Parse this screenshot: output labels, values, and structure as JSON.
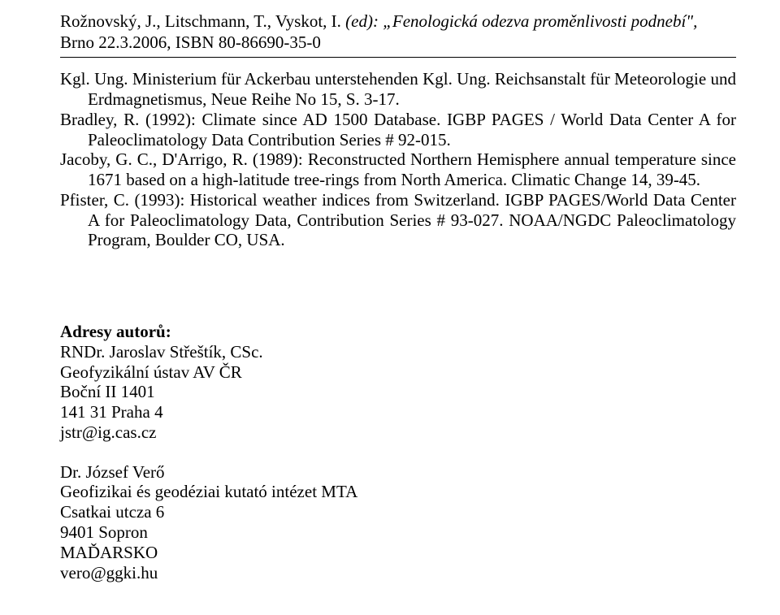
{
  "header": {
    "line1_before": "Rožnovský, J., Litschmann, T., Vyskot, I.  ",
    "line1_after": "(ed): „Fenologická odezva proměnlivosti podnebí\",",
    "line2": "Brno 22.3.2006, ISBN 80-86690-35-0"
  },
  "refs": {
    "r1": "Kgl. Ung. Ministerium für Ackerbau unterstehenden Kgl. Ung. Reichsanstalt für Meteorologie und Erdmagnetismus, Neue Reihe No 15, S. 3-17.",
    "r2": "Bradley, R. (1992): Climate since AD 1500 Database. IGBP PAGES / World Data Center A for Paleoclimatology Data Contribution Series # 92-015.",
    "r3": "Jacoby, G. C., D'Arrigo, R. (1989): Reconstructed Northern Hemisphere annual temperature since 1671 based on a high-latitude tree-rings from North America. Climatic Change 14, 39-45.",
    "r4": "Pfister, C. (1993): Historical weather indices from Switzerland. IGBP PAGES/World Data Center A for Paleoclimatology Data, Contribution Series # 93-027. NOAA/NGDC Paleoclimatology Program, Boulder CO, USA."
  },
  "authors": {
    "heading": "Adresy autorů:",
    "a1_line1": "RNDr. Jaroslav Střeštík, CSc.",
    "a1_line2": "Geofyzikální ústav AV ČR",
    "a1_line3": "Boční II 1401",
    "a1_line4": "141 31  Praha 4",
    "a1_line5": "jstr@ig.cas.cz",
    "a2_line1": "Dr. József Verő",
    "a2_line2": "Geofizikai és geodéziai kutató intézet MTA",
    "a2_line3": "Csatkai utcza 6",
    "a2_line4": "9401 Sopron",
    "a2_line5": "MAĎARSKO",
    "a2_line6": "vero@ggki.hu"
  }
}
